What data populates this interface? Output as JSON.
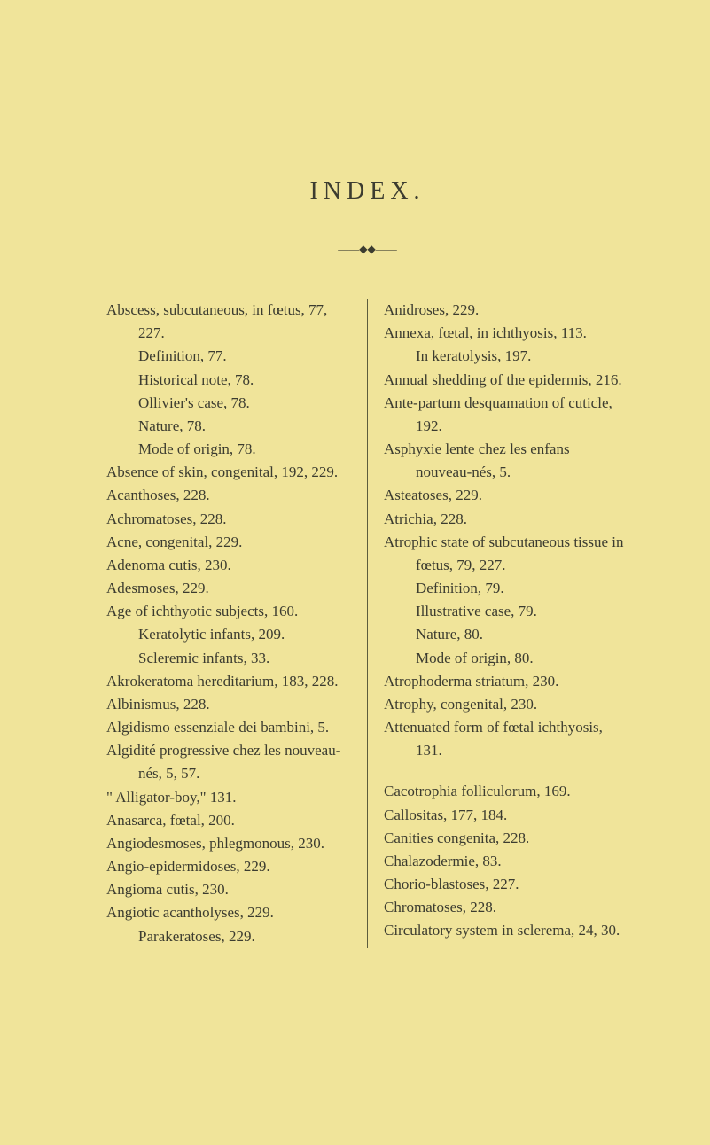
{
  "page": {
    "title": "INDEX.",
    "ornament": "——◆◆——"
  },
  "left_col": {
    "e0": "Abscess, subcutaneous, in fœtus, 77, 227.",
    "e1": "Definition, 77.",
    "e2": "Historical note, 78.",
    "e3": "Ollivier's case, 78.",
    "e4": "Nature, 78.",
    "e5": "Mode of origin, 78.",
    "e6": "Absence of skin, congenital, 192, 229.",
    "e7": "Acanthoses, 228.",
    "e8": "Achromatoses, 228.",
    "e9": "Acne, congenital, 229.",
    "e10": "Adenoma cutis, 230.",
    "e11": "Adesmoses, 229.",
    "e12": "Age of ichthyotic subjects, 160.",
    "e13": "Keratolytic infants, 209.",
    "e14": "Scleremic infants, 33.",
    "e15": "Akrokeratoma hereditarium, 183, 228.",
    "e16": "Albinismus, 228.",
    "e17": "Algidismo essenziale dei bambini, 5.",
    "e18": "Algidité progressive chez les nouveau-nés, 5, 57.",
    "e19": "\" Alligator-boy,\" 131.",
    "e20": "Anasarca, fœtal, 200.",
    "e21": "Angiodesmoses, phlegmonous, 230.",
    "e22": "Angio-epidermidoses, 229.",
    "e23": "Angioma cutis, 230.",
    "e24": "Angiotic acantholyses, 229.",
    "e25": "Parakeratoses, 229."
  },
  "right_col": {
    "e0": "Anidroses, 229.",
    "e1": "Annexa, fœtal, in ichthyosis, 113.",
    "e2": "In keratolysis, 197.",
    "e3": "Annual shedding of the epidermis, 216.",
    "e4": "Ante-partum desquamation of cuticle, 192.",
    "e5": "Asphyxie lente chez les enfans nouveau-nés, 5.",
    "e6": "Asteatoses, 229.",
    "e7": "Atrichia, 228.",
    "e8": "Atrophic state of subcutaneous tissue in fœtus, 79, 227.",
    "e9": "Definition, 79.",
    "e10": "Illustrative case, 79.",
    "e11": "Nature, 80.",
    "e12": "Mode of origin, 80.",
    "e13": "Atrophoderma striatum, 230.",
    "e14": "Atrophy, congenital, 230.",
    "e15": "Attenuated form of fœtal ichthyosis, 131.",
    "e16": "Cacotrophia folliculorum, 169.",
    "e17": "Callositas, 177, 184.",
    "e18": "Canities congenita, 228.",
    "e19": "Chalazodermie, 83.",
    "e20": "Chorio-blastoses, 227.",
    "e21": "Chromatoses, 228.",
    "e22": "Circulatory system in sclerema, 24, 30."
  }
}
